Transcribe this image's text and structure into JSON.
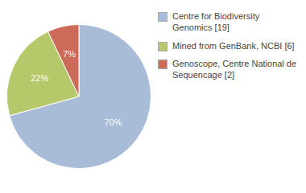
{
  "chart_data": {
    "type": "pie",
    "categories": [
      "Centre for Biodiversity\nGenomics [19]",
      "Mined from GenBank, NCBI [6]",
      "Genoscope, Centre National de\nSequencage [2]"
    ],
    "values": [
      70,
      22,
      7
    ],
    "value_labels": [
      "70%",
      "22%",
      "7%"
    ],
    "colors": [
      "#a8bcd8",
      "#b5c96a",
      "#cc6b5a"
    ],
    "data_labels": true,
    "legend": "right"
  }
}
